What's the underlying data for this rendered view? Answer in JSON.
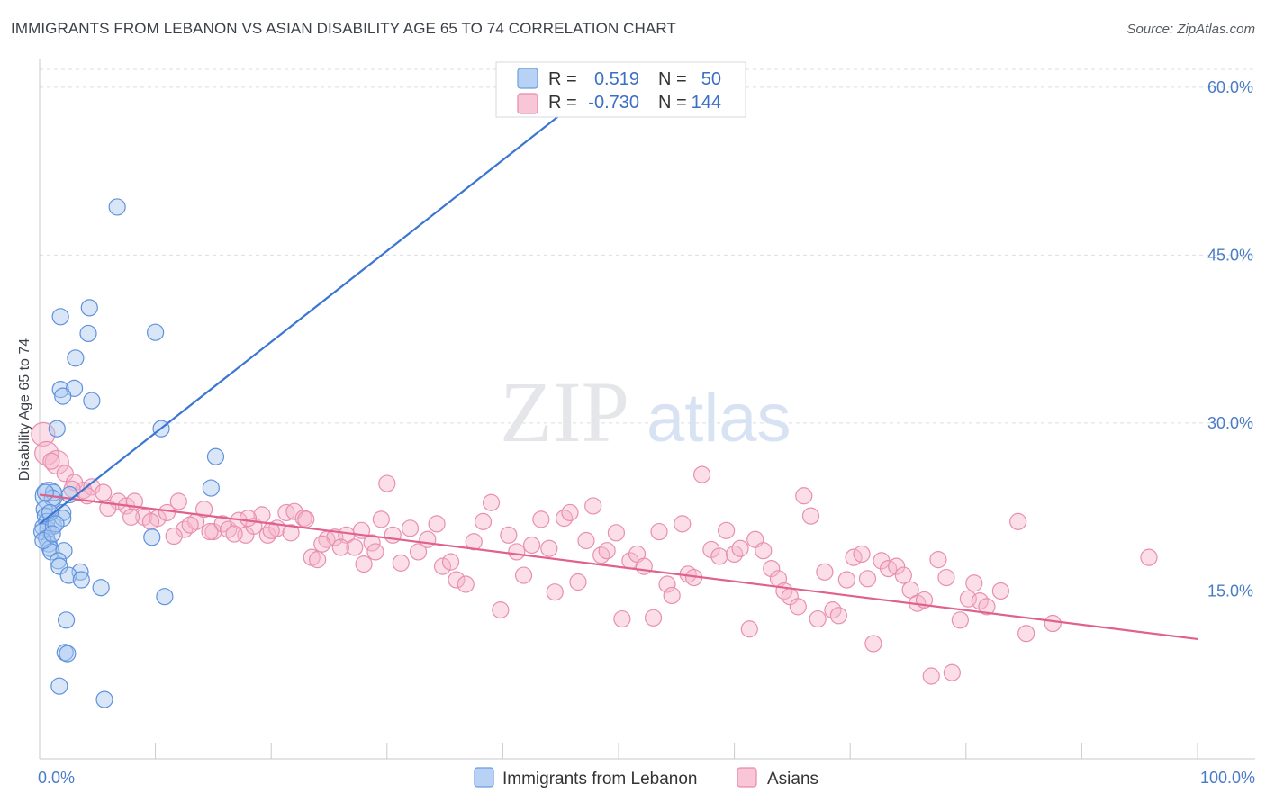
{
  "title": "IMMIGRANTS FROM LEBANON VS ASIAN DISABILITY AGE 65 TO 74 CORRELATION CHART",
  "source": "Source: ZipAtlas.com",
  "watermark": {
    "zip": "ZIP",
    "atlas": "atlas"
  },
  "colors": {
    "blue": "#3a76d2",
    "pink": "#e0608e",
    "blue_fill": "#a9c8f0",
    "pink_fill": "#f6b6ca"
  },
  "legend": {
    "r_label": "R =",
    "n_label": "N =",
    "rows": [
      {
        "r": "0.519",
        "n": "50"
      },
      {
        "r": "-0.730",
        "n": "144"
      }
    ]
  },
  "chart_data": {
    "type": "scatter",
    "title": "IMMIGRANTS FROM LEBANON VS ASIAN DISABILITY AGE 65 TO 74 CORRELATION CHART",
    "xlabel": "",
    "ylabel": "Disability Age 65 to 74",
    "xlim": [
      0,
      100
    ],
    "ylim": [
      0,
      62
    ],
    "x_tick_labels": [
      "0.0%",
      "100.0%"
    ],
    "y_ticks": [
      15,
      30,
      45,
      60
    ],
    "y_tick_labels": [
      "15.0%",
      "30.0%",
      "45.0%",
      "60.0%"
    ],
    "grid": true,
    "legend_position": "top-center",
    "series": [
      {
        "name": "Immigrants from Lebanon",
        "color": "#3a76d2",
        "trend": {
          "x": [
            0,
            48
          ],
          "y": [
            21.0,
            60.0
          ]
        },
        "points": [
          [
            6.7,
            49.3
          ],
          [
            1.8,
            39.5
          ],
          [
            4.3,
            40.3
          ],
          [
            4.2,
            38.0
          ],
          [
            10.0,
            38.1
          ],
          [
            3.1,
            35.8
          ],
          [
            1.8,
            33.0
          ],
          [
            3.0,
            33.1
          ],
          [
            2.0,
            32.4
          ],
          [
            4.5,
            32.0
          ],
          [
            1.5,
            29.5
          ],
          [
            10.5,
            29.5
          ],
          [
            15.2,
            27.0
          ],
          [
            0.8,
            23.5
          ],
          [
            1.2,
            23.8
          ],
          [
            1.1,
            23.3
          ],
          [
            0.4,
            22.3
          ],
          [
            2.0,
            22.0
          ],
          [
            14.8,
            24.2
          ],
          [
            0.5,
            21.7
          ],
          [
            0.6,
            21.2
          ],
          [
            0.3,
            20.7
          ],
          [
            0.7,
            20.5
          ],
          [
            0.2,
            20.3
          ],
          [
            1.2,
            20.8
          ],
          [
            2.0,
            21.5
          ],
          [
            0.6,
            19.7
          ],
          [
            0.8,
            19.2
          ],
          [
            0.9,
            18.8
          ],
          [
            1.0,
            18.5
          ],
          [
            2.1,
            18.6
          ],
          [
            1.6,
            17.7
          ],
          [
            1.7,
            17.2
          ],
          [
            9.7,
            19.8
          ],
          [
            3.5,
            16.7
          ],
          [
            2.5,
            16.4
          ],
          [
            3.6,
            16.0
          ],
          [
            5.3,
            15.3
          ],
          [
            10.8,
            14.5
          ],
          [
            2.3,
            12.4
          ],
          [
            2.2,
            9.5
          ],
          [
            2.4,
            9.4
          ],
          [
            1.7,
            6.5
          ],
          [
            5.6,
            5.3
          ],
          [
            0.5,
            23.8
          ],
          [
            0.9,
            22.0
          ],
          [
            1.4,
            21.0
          ],
          [
            0.3,
            19.5
          ],
          [
            2.6,
            23.6
          ],
          [
            1.1,
            20.1
          ]
        ]
      },
      {
        "name": "Asians",
        "color": "#e0608e",
        "trend": {
          "x": [
            0,
            100
          ],
          "y": [
            23.6,
            10.7
          ]
        },
        "points": [
          [
            0.3,
            29.0
          ],
          [
            0.6,
            27.3
          ],
          [
            1.5,
            26.5
          ],
          [
            2.2,
            25.5
          ],
          [
            3.0,
            24.7
          ],
          [
            3.8,
            24.0
          ],
          [
            4.5,
            24.3
          ],
          [
            5.5,
            23.8
          ],
          [
            6.8,
            23.0
          ],
          [
            7.5,
            22.6
          ],
          [
            8.2,
            23.0
          ],
          [
            9.0,
            21.6
          ],
          [
            10.2,
            21.5
          ],
          [
            11.0,
            22.0
          ],
          [
            12.0,
            23.0
          ],
          [
            12.5,
            20.5
          ],
          [
            13.5,
            21.2
          ],
          [
            14.2,
            22.3
          ],
          [
            15.0,
            20.3
          ],
          [
            15.8,
            21.0
          ],
          [
            16.3,
            20.5
          ],
          [
            17.2,
            21.3
          ],
          [
            17.8,
            20.0
          ],
          [
            18.5,
            20.8
          ],
          [
            19.2,
            21.8
          ],
          [
            19.7,
            20.0
          ],
          [
            20.5,
            20.6
          ],
          [
            21.3,
            22.0
          ],
          [
            22.0,
            22.1
          ],
          [
            22.8,
            21.5
          ],
          [
            23.5,
            18.0
          ],
          [
            24.0,
            17.8
          ],
          [
            24.8,
            19.6
          ],
          [
            25.5,
            19.8
          ],
          [
            26.5,
            20.0
          ],
          [
            27.2,
            18.9
          ],
          [
            28.0,
            17.4
          ],
          [
            28.7,
            19.3
          ],
          [
            29.5,
            21.4
          ],
          [
            30.5,
            20.0
          ],
          [
            31.2,
            17.5
          ],
          [
            32.0,
            20.6
          ],
          [
            32.7,
            18.5
          ],
          [
            33.5,
            19.6
          ],
          [
            34.3,
            21.0
          ],
          [
            34.8,
            17.2
          ],
          [
            35.5,
            17.6
          ],
          [
            36.0,
            16.0
          ],
          [
            36.8,
            15.6
          ],
          [
            37.5,
            19.4
          ],
          [
            38.3,
            21.2
          ],
          [
            39.0,
            22.9
          ],
          [
            39.8,
            13.3
          ],
          [
            40.5,
            20.0
          ],
          [
            41.2,
            18.5
          ],
          [
            41.8,
            16.4
          ],
          [
            42.5,
            19.1
          ],
          [
            43.3,
            21.4
          ],
          [
            44.0,
            18.8
          ],
          [
            44.5,
            14.9
          ],
          [
            45.3,
            21.5
          ],
          [
            45.8,
            22.0
          ],
          [
            46.5,
            15.8
          ],
          [
            47.2,
            19.5
          ],
          [
            47.8,
            22.6
          ],
          [
            48.5,
            18.2
          ],
          [
            49.0,
            18.6
          ],
          [
            49.8,
            20.2
          ],
          [
            50.3,
            12.5
          ],
          [
            51.0,
            17.7
          ],
          [
            51.6,
            18.3
          ],
          [
            52.2,
            17.2
          ],
          [
            53.0,
            12.6
          ],
          [
            53.5,
            20.3
          ],
          [
            54.2,
            15.6
          ],
          [
            54.6,
            14.6
          ],
          [
            55.5,
            21.0
          ],
          [
            56.0,
            16.5
          ],
          [
            56.5,
            16.2
          ],
          [
            57.2,
            25.4
          ],
          [
            58.0,
            18.7
          ],
          [
            58.7,
            18.1
          ],
          [
            59.3,
            20.4
          ],
          [
            60.0,
            18.3
          ],
          [
            60.5,
            18.8
          ],
          [
            61.3,
            11.6
          ],
          [
            61.8,
            19.6
          ],
          [
            62.5,
            18.6
          ],
          [
            63.2,
            17.0
          ],
          [
            63.8,
            16.1
          ],
          [
            64.3,
            15.0
          ],
          [
            64.8,
            14.5
          ],
          [
            65.5,
            13.6
          ],
          [
            66.0,
            23.5
          ],
          [
            66.6,
            21.7
          ],
          [
            67.2,
            12.5
          ],
          [
            67.8,
            16.7
          ],
          [
            68.5,
            13.3
          ],
          [
            69.0,
            12.8
          ],
          [
            69.7,
            16.0
          ],
          [
            70.3,
            18.0
          ],
          [
            71.0,
            18.3
          ],
          [
            71.5,
            16.1
          ],
          [
            72.0,
            10.3
          ],
          [
            72.7,
            17.7
          ],
          [
            73.3,
            17.0
          ],
          [
            74.0,
            17.2
          ],
          [
            74.6,
            16.4
          ],
          [
            75.2,
            15.1
          ],
          [
            75.8,
            13.9
          ],
          [
            76.4,
            14.2
          ],
          [
            77.0,
            7.4
          ],
          [
            77.6,
            17.8
          ],
          [
            78.3,
            16.2
          ],
          [
            78.8,
            7.7
          ],
          [
            79.5,
            12.4
          ],
          [
            80.2,
            14.3
          ],
          [
            80.7,
            15.7
          ],
          [
            81.2,
            14.1
          ],
          [
            81.8,
            13.6
          ],
          [
            83.0,
            15.0
          ],
          [
            84.5,
            21.2
          ],
          [
            85.2,
            11.2
          ],
          [
            87.5,
            12.1
          ],
          [
            95.8,
            18.0
          ],
          [
            1.0,
            26.6
          ],
          [
            2.8,
            24.1
          ],
          [
            4.1,
            23.5
          ],
          [
            5.9,
            22.4
          ],
          [
            7.9,
            21.6
          ],
          [
            9.6,
            21.2
          ],
          [
            11.6,
            19.9
          ],
          [
            13.0,
            20.9
          ],
          [
            14.7,
            20.3
          ],
          [
            16.8,
            20.1
          ],
          [
            18.0,
            21.5
          ],
          [
            20.0,
            20.4
          ],
          [
            21.7,
            20.2
          ],
          [
            23.0,
            21.4
          ],
          [
            24.4,
            19.2
          ],
          [
            26.0,
            18.9
          ],
          [
            27.8,
            20.4
          ],
          [
            29.0,
            18.5
          ],
          [
            30.0,
            24.6
          ]
        ]
      }
    ]
  },
  "bottom_legend": [
    "Immigrants from Lebanon",
    "Asians"
  ]
}
